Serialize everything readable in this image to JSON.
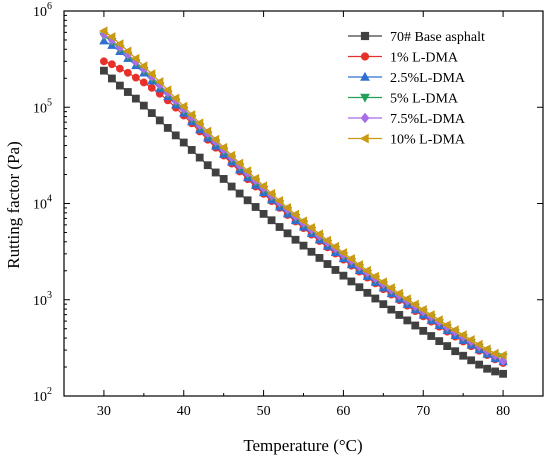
{
  "chart_data": {
    "type": "line",
    "title": "",
    "xlabel": "Temperature (°C)",
    "ylabel": "Rutting factor (Pa)",
    "xlim": [
      25,
      85
    ],
    "ylim": [
      100,
      1000000
    ],
    "yscale": "log",
    "xticks": [
      30,
      40,
      50,
      60,
      70,
      80
    ],
    "xtick_labels": [
      "30",
      "40",
      "50",
      "60",
      "70",
      "80"
    ],
    "yticks": [
      100,
      1000,
      10000,
      100000,
      1000000
    ],
    "ytick_labels": [
      {
        "base": "10",
        "exp": "2"
      },
      {
        "base": "10",
        "exp": "3"
      },
      {
        "base": "10",
        "exp": "4"
      },
      {
        "base": "10",
        "exp": "5"
      },
      {
        "base": "10",
        "exp": "6"
      }
    ],
    "grid": false,
    "legend_position": "top-right",
    "x": [
      30,
      31,
      32,
      33,
      34,
      35,
      36,
      37,
      38,
      39,
      40,
      41,
      42,
      43,
      44,
      45,
      46,
      47,
      48,
      49,
      50,
      51,
      52,
      53,
      54,
      55,
      56,
      57,
      58,
      59,
      60,
      61,
      62,
      63,
      64,
      65,
      66,
      67,
      68,
      69,
      70,
      71,
      72,
      73,
      74,
      75,
      76,
      77,
      78,
      79,
      80
    ],
    "series": [
      {
        "name": "70# Base asphalt",
        "color": "#404040",
        "marker": "square",
        "values": [
          240000,
          199000,
          168000,
          144000,
          123000,
          104000,
          87000,
          73000,
          61000,
          51000,
          43000,
          36000,
          30000,
          25000,
          21000,
          18000,
          15000,
          12700,
          10800,
          9200,
          7800,
          6700,
          5700,
          4900,
          4200,
          3650,
          3150,
          2720,
          2350,
          2040,
          1780,
          1550,
          1350,
          1180,
          1030,
          900,
          790,
          695,
          610,
          540,
          475,
          420,
          372,
          330,
          292,
          262,
          235,
          212,
          192,
          180,
          170
        ]
      },
      {
        "name": "1%   L-DMA",
        "color": "#e8302a",
        "marker": "circle",
        "values": [
          300000,
          280000,
          252000,
          228000,
          203000,
          181000,
          159000,
          138000,
          118000,
          99000,
          82000,
          68000,
          56000,
          46000,
          38000,
          31500,
          26000,
          21500,
          17900,
          15000,
          12600,
          10600,
          9000,
          7600,
          6500,
          5550,
          4750,
          4080,
          3500,
          3020,
          2610,
          2260,
          1960,
          1700,
          1480,
          1290,
          1130,
          990,
          868,
          763,
          672,
          593,
          525,
          466,
          414,
          368,
          329,
          295,
          266,
          240,
          220
        ]
      },
      {
        "name": "2.5%L-DMA",
        "color": "#2f6fd1",
        "marker": "triangle",
        "values": [
          490000,
          440000,
          380000,
          322000,
          271000,
          227000,
          188000,
          156000,
          129000,
          106000,
          87000,
          71000,
          58500,
          48000,
          39500,
          32500,
          27000,
          22400,
          18600,
          15500,
          13000,
          10900,
          9200,
          7800,
          6650,
          5700,
          4880,
          4190,
          3600,
          3100,
          2680,
          2320,
          2010,
          1750,
          1520,
          1330,
          1160,
          1020,
          895,
          787,
          693,
          612,
          541,
          479,
          425,
          379,
          338,
          303,
          272,
          245,
          228
        ]
      },
      {
        "name": "5%   L-DMA",
        "color": "#22a05a",
        "marker": "triangle-down",
        "values": [
          550000,
          480000,
          405000,
          342000,
          288000,
          241000,
          200000,
          166000,
          137000,
          113000,
          93000,
          76000,
          62500,
          51500,
          42500,
          35000,
          29000,
          24000,
          20000,
          16700,
          14000,
          11700,
          9900,
          8400,
          7150,
          6100,
          5220,
          4480,
          3850,
          3320,
          2860,
          2480,
          2150,
          1870,
          1630,
          1420,
          1240,
          1085,
          953,
          838,
          738,
          652,
          576,
          510,
          453,
          403,
          359,
          321,
          288,
          259,
          255
        ]
      },
      {
        "name": "7.5%L-DMA",
        "color": "#a86ee8",
        "marker": "diamond",
        "values": [
          570000,
          500000,
          420000,
          355000,
          298000,
          250000,
          208000,
          172000,
          142000,
          117000,
          96000,
          79000,
          65000,
          53500,
          44000,
          36300,
          30000,
          24900,
          20700,
          17300,
          14500,
          12100,
          10200,
          8650,
          7350,
          6270,
          5370,
          4600,
          3960,
          3410,
          2940,
          2550,
          2210,
          1920,
          1670,
          1460,
          1270,
          1110,
          975,
          857,
          755,
          667,
          589,
          522,
          463,
          412,
          367,
          328,
          294,
          264,
          232
        ]
      },
      {
        "name": "10% L-DMA",
        "color": "#c99a12",
        "marker": "triangle-left",
        "values": [
          620000,
          540000,
          455000,
          383000,
          321000,
          268000,
          222000,
          184000,
          151000,
          124000,
          102000,
          83500,
          68500,
          56300,
          46300,
          38200,
          31600,
          26200,
          21800,
          18200,
          15200,
          12700,
          10700,
          9050,
          7700,
          6570,
          5620,
          4820,
          4140,
          3570,
          3080,
          2670,
          2310,
          2010,
          1750,
          1530,
          1330,
          1165,
          1020,
          897,
          790,
          698,
          617,
          547,
          486,
          432,
          385,
          344,
          308,
          277,
          265
        ]
      }
    ]
  }
}
